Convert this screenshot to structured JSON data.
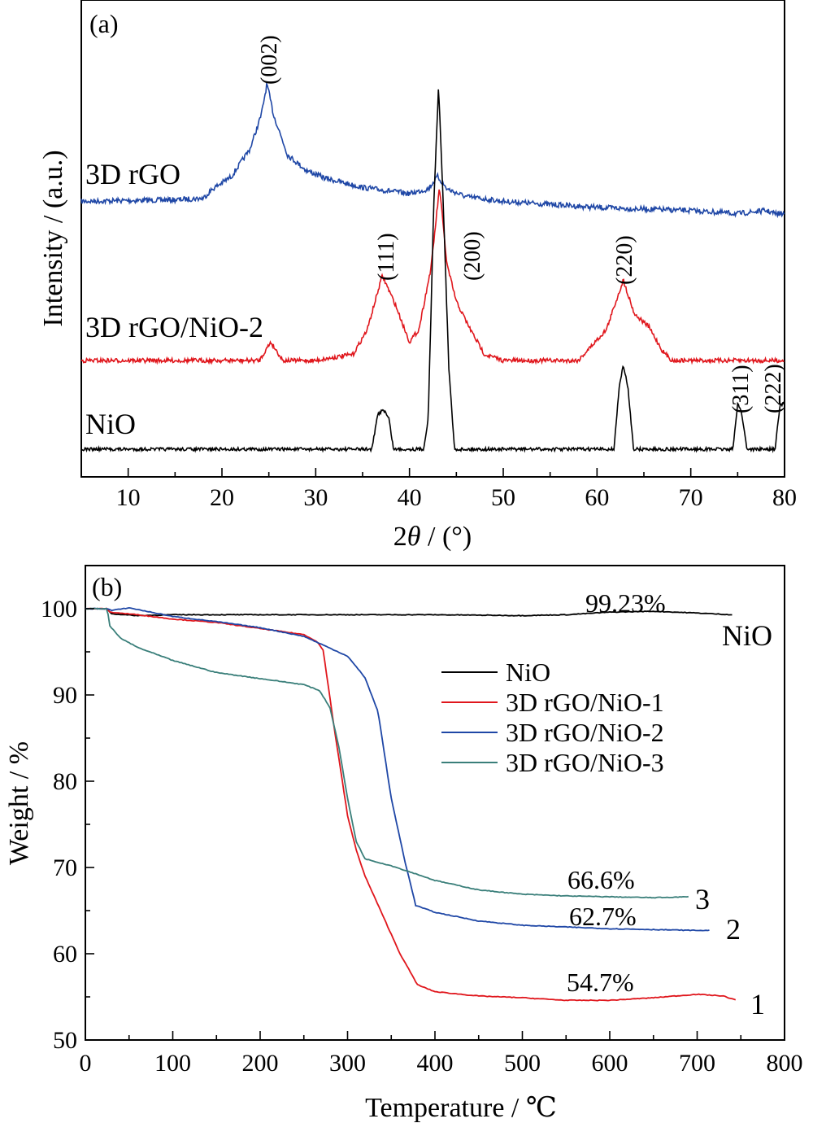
{
  "colors": {
    "black": "#000000",
    "red": "#e0161c",
    "blue": "#1f47a6",
    "teal": "#3a7f7a"
  },
  "chart_data": [
    {
      "type": "line",
      "panel_label": "(a)",
      "xlabel_prefix": "2",
      "xlabel_symbol": "θ",
      "xlabel_suffix": " / (°)",
      "ylabel": "Intensity / (a.u.)",
      "xlim": [
        5,
        80
      ],
      "x_ticks": [
        "10",
        "20",
        "30",
        "40",
        "50",
        "60",
        "70",
        "80"
      ],
      "y_ticks": [],
      "series": [
        {
          "name": "3D rGO",
          "color": "#1f47a6",
          "noise": 3.2,
          "points": [
            [
              5,
              0.04
            ],
            [
              10,
              0.045
            ],
            [
              15,
              0.05
            ],
            [
              18,
              0.06
            ],
            [
              19,
              0.12
            ],
            [
              21,
              0.2
            ],
            [
              23,
              0.38
            ],
            [
              24.2,
              0.6
            ],
            [
              24.8,
              0.8
            ],
            [
              25.5,
              0.6
            ],
            [
              27,
              0.34
            ],
            [
              29,
              0.24
            ],
            [
              31,
              0.19
            ],
            [
              35,
              0.13
            ],
            [
              40,
              0.09
            ],
            [
              42,
              0.12
            ],
            [
              43,
              0.2
            ],
            [
              44,
              0.12
            ],
            [
              46,
              0.07
            ],
            [
              50,
              0.04
            ],
            [
              55,
              0.02
            ],
            [
              60,
              0.0
            ],
            [
              65,
              -0.01
            ],
            [
              70,
              -0.02
            ],
            [
              75,
              -0.04
            ],
            [
              78,
              -0.02
            ],
            [
              79,
              -0.04
            ],
            [
              80,
              -0.04
            ]
          ]
        },
        {
          "name": "3D rGO/NiO-2",
          "color": "#e0161c",
          "noise": 2.6,
          "points": [
            [
              5,
              0.0
            ],
            [
              24,
              0.0
            ],
            [
              25.2,
              0.12
            ],
            [
              26.5,
              0.0
            ],
            [
              30,
              0.0
            ],
            [
              34,
              0.04
            ],
            [
              35.5,
              0.2
            ],
            [
              37.1,
              0.55
            ],
            [
              38.5,
              0.36
            ],
            [
              40,
              0.12
            ],
            [
              41,
              0.2
            ],
            [
              42.3,
              0.6
            ],
            [
              43.2,
              1.12
            ],
            [
              44,
              0.62
            ],
            [
              45,
              0.38
            ],
            [
              46.5,
              0.2
            ],
            [
              48,
              0.04
            ],
            [
              50,
              0.0
            ],
            [
              58,
              0.0
            ],
            [
              61,
              0.2
            ],
            [
              62.8,
              0.52
            ],
            [
              64,
              0.3
            ],
            [
              65.5,
              0.22
            ],
            [
              67,
              0.06
            ],
            [
              68,
              0.0
            ],
            [
              80,
              0.0
            ]
          ]
        },
        {
          "name": "NiO",
          "color": "#000000",
          "noise": 2.0,
          "points": [
            [
              5,
              0.0
            ],
            [
              36,
              0.0
            ],
            [
              36.6,
              0.22
            ],
            [
              37.2,
              0.26
            ],
            [
              37.8,
              0.2
            ],
            [
              38.3,
              0.0
            ],
            [
              41.5,
              0.0
            ],
            [
              42.0,
              0.2
            ],
            [
              42.6,
              1.6
            ],
            [
              43.1,
              2.35
            ],
            [
              43.6,
              1.6
            ],
            [
              44.2,
              0.52
            ],
            [
              44.8,
              0.0
            ],
            [
              61.8,
              0.0
            ],
            [
              62.4,
              0.42
            ],
            [
              62.8,
              0.54
            ],
            [
              63.3,
              0.4
            ],
            [
              63.9,
              0.0
            ],
            [
              74.5,
              0.0
            ],
            [
              75.0,
              0.3
            ],
            [
              75.4,
              0.24
            ],
            [
              76.0,
              0.0
            ],
            [
              79.0,
              0.0
            ],
            [
              79.5,
              0.28
            ],
            [
              80,
              0.3
            ]
          ]
        }
      ],
      "annotations": [
        "(002)",
        "(111)",
        "(200)",
        "(220)",
        "(311)",
        "(222)"
      ]
    },
    {
      "type": "line",
      "panel_label": "(b)",
      "xlabel": "Temperature / ℃",
      "ylabel": "Weight / %",
      "xlim": [
        0,
        800
      ],
      "ylim": [
        50,
        105
      ],
      "x_ticks": [
        "0",
        "100",
        "200",
        "300",
        "400",
        "500",
        "600",
        "700",
        "800"
      ],
      "y_ticks": [
        "50",
        "60",
        "70",
        "80",
        "90",
        "100"
      ],
      "legend": [
        "NiO",
        "3D rGO/NiO-1",
        "3D rGO/NiO-2",
        "3D rGO/NiO-3"
      ],
      "legend_position": "center-right",
      "series": [
        {
          "name": "NiO",
          "color": "#000000",
          "points": [
            [
              0,
              100
            ],
            [
              25,
              100
            ],
            [
              30,
              99.4
            ],
            [
              60,
              99.2
            ],
            [
              100,
              99.3
            ],
            [
              200,
              99.3
            ],
            [
              300,
              99.3
            ],
            [
              400,
              99.3
            ],
            [
              500,
              99.2
            ],
            [
              550,
              99.3
            ],
            [
              600,
              99.6
            ],
            [
              650,
              99.7
            ],
            [
              700,
              99.5
            ],
            [
              740,
              99.3
            ]
          ]
        },
        {
          "name": "3D rGO/NiO-1",
          "color": "#e0161c",
          "points": [
            [
              0,
              100
            ],
            [
              25,
              100
            ],
            [
              28,
              99.6
            ],
            [
              60,
              99.3
            ],
            [
              100,
              98.8
            ],
            [
              150,
              98.4
            ],
            [
              200,
              97.7
            ],
            [
              250,
              97.0
            ],
            [
              265,
              96.2
            ],
            [
              272,
              95.2
            ],
            [
              278,
              91.0
            ],
            [
              285,
              86.0
            ],
            [
              300,
              76.0
            ],
            [
              310,
              72.0
            ],
            [
              320,
              69.0
            ],
            [
              340,
              64.5
            ],
            [
              360,
              60.0
            ],
            [
              380,
              56.4
            ],
            [
              400,
              55.6
            ],
            [
              450,
              55.1
            ],
            [
              500,
              54.9
            ],
            [
              550,
              54.6
            ],
            [
              600,
              54.6
            ],
            [
              650,
              54.9
            ],
            [
              700,
              55.3
            ],
            [
              730,
              55.1
            ],
            [
              745,
              54.6
            ]
          ]
        },
        {
          "name": "3D rGO/NiO-2",
          "color": "#1f47a6",
          "points": [
            [
              0,
              100
            ],
            [
              25,
              100
            ],
            [
              30,
              99.8
            ],
            [
              50,
              100.1
            ],
            [
              100,
              99.1
            ],
            [
              150,
              98.5
            ],
            [
              200,
              97.8
            ],
            [
              250,
              96.8
            ],
            [
              300,
              94.5
            ],
            [
              320,
              92.0
            ],
            [
              335,
              88.0
            ],
            [
              350,
              78.0
            ],
            [
              365,
              71.0
            ],
            [
              378,
              65.6
            ],
            [
              400,
              64.8
            ],
            [
              450,
              63.8
            ],
            [
              500,
              63.3
            ],
            [
              550,
              63.1
            ],
            [
              600,
              62.9
            ],
            [
              650,
              62.8
            ],
            [
              700,
              62.7
            ],
            [
              715,
              62.7
            ]
          ]
        },
        {
          "name": "3D rGO/NiO-3",
          "color": "#3a7f7a",
          "points": [
            [
              0,
              100
            ],
            [
              25,
              100
            ],
            [
              28,
              98.0
            ],
            [
              40,
              96.6
            ],
            [
              60,
              95.5
            ],
            [
              100,
              94.0
            ],
            [
              150,
              92.6
            ],
            [
              200,
              91.9
            ],
            [
              250,
              91.2
            ],
            [
              268,
              90.5
            ],
            [
              280,
              88.5
            ],
            [
              290,
              84.0
            ],
            [
              300,
              78.0
            ],
            [
              310,
              73.0
            ],
            [
              320,
              71.0
            ],
            [
              350,
              70.2
            ],
            [
              380,
              69.2
            ],
            [
              400,
              68.5
            ],
            [
              450,
              67.4
            ],
            [
              500,
              66.9
            ],
            [
              550,
              66.7
            ],
            [
              600,
              66.6
            ],
            [
              650,
              66.5
            ],
            [
              690,
              66.6
            ]
          ]
        }
      ],
      "annotations": [
        "99.23%",
        "NiO",
        "66.6%",
        "3",
        "62.7%",
        "2",
        "54.7%",
        "1"
      ]
    }
  ]
}
